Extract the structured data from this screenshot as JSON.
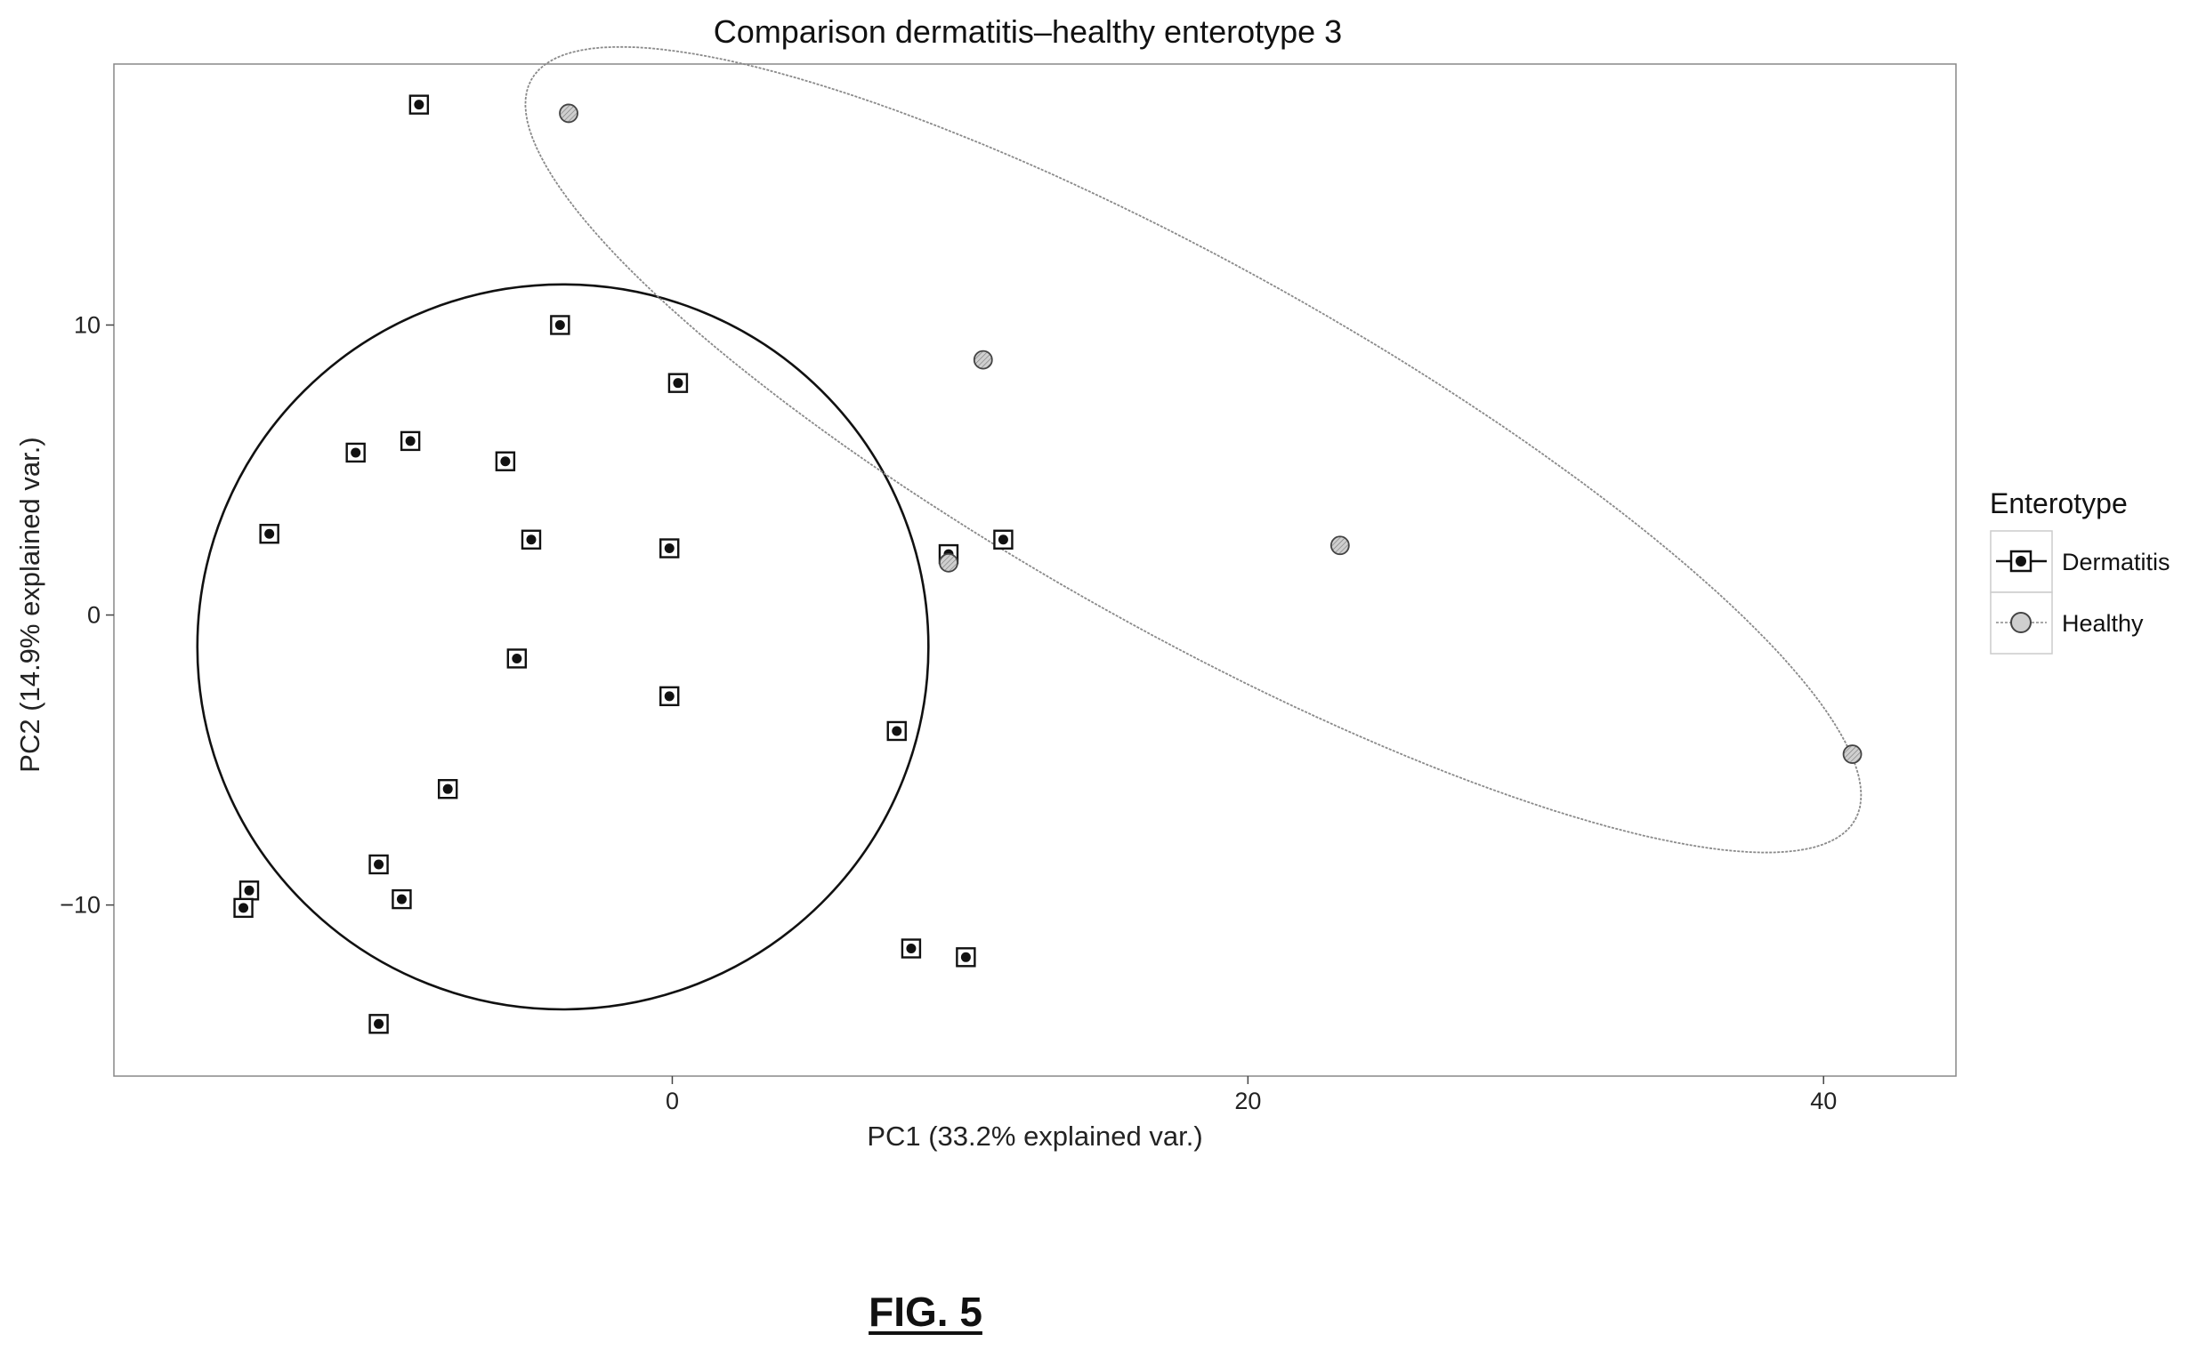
{
  "figure_label": "FIG. 5",
  "chart_data": {
    "type": "scatter",
    "title": "Comparison dermatitis–healthy enterotype 3",
    "xlabel": "PC1 (33.2% explained var.)",
    "ylabel": "PC2 (14.9% explained var.)",
    "xlim": [
      -19.4,
      44.6
    ],
    "ylim": [
      -15.9,
      19.0
    ],
    "xticks": [
      0,
      20,
      40
    ],
    "yticks": [
      -10,
      0,
      10
    ],
    "xtick_labels": [
      "0",
      "20",
      "40"
    ],
    "ytick_labels": [
      "−10",
      "0",
      "10"
    ],
    "grid": false,
    "legend": {
      "title": "Enterotype",
      "placement": "right",
      "entries": [
        "Dermatitis",
        "Healthy"
      ]
    },
    "colors": {
      "dermatitis": "#111111",
      "healthy": "#8a8a8a",
      "healthy_fill": "#cfcfcf",
      "panel_border": "#888888"
    },
    "series": [
      {
        "name": "Dermatitis",
        "marker": "square-with-dot",
        "points": [
          [
            -8.8,
            17.6
          ],
          [
            -3.9,
            10.0
          ],
          [
            0.2,
            8.0
          ],
          [
            -11.0,
            5.6
          ],
          [
            -9.1,
            6.0
          ],
          [
            -5.8,
            5.3
          ],
          [
            -14.0,
            2.8
          ],
          [
            -4.9,
            2.6
          ],
          [
            -0.1,
            2.3
          ],
          [
            9.6,
            2.1
          ],
          [
            11.5,
            2.6
          ],
          [
            -5.4,
            -1.5
          ],
          [
            -0.1,
            -2.8
          ],
          [
            7.8,
            -4.0
          ],
          [
            -7.8,
            -6.0
          ],
          [
            -10.2,
            -8.6
          ],
          [
            -14.7,
            -9.5
          ],
          [
            -9.4,
            -9.8
          ],
          [
            -14.9,
            -10.1
          ],
          [
            8.3,
            -11.5
          ],
          [
            10.2,
            -11.8
          ],
          [
            -10.2,
            -14.1
          ]
        ]
      },
      {
        "name": "Healthy",
        "marker": "hatched-circle",
        "points": [
          [
            -3.6,
            17.3
          ],
          [
            10.8,
            8.8
          ],
          [
            9.6,
            1.8
          ],
          [
            23.2,
            2.4
          ],
          [
            41.0,
            -4.8
          ]
        ]
      }
    ],
    "ellipses": [
      {
        "series": "Dermatitis",
        "center": [
          -3.8,
          -1.1
        ],
        "radii": [
          12.7,
          12.5
        ],
        "angle": 0
      },
      {
        "series": "Healthy",
        "center": [
          18.1,
          5.7
        ],
        "semi_axes": [
          26.3,
          6.3
        ],
        "angle_deg": -29
      }
    ]
  }
}
